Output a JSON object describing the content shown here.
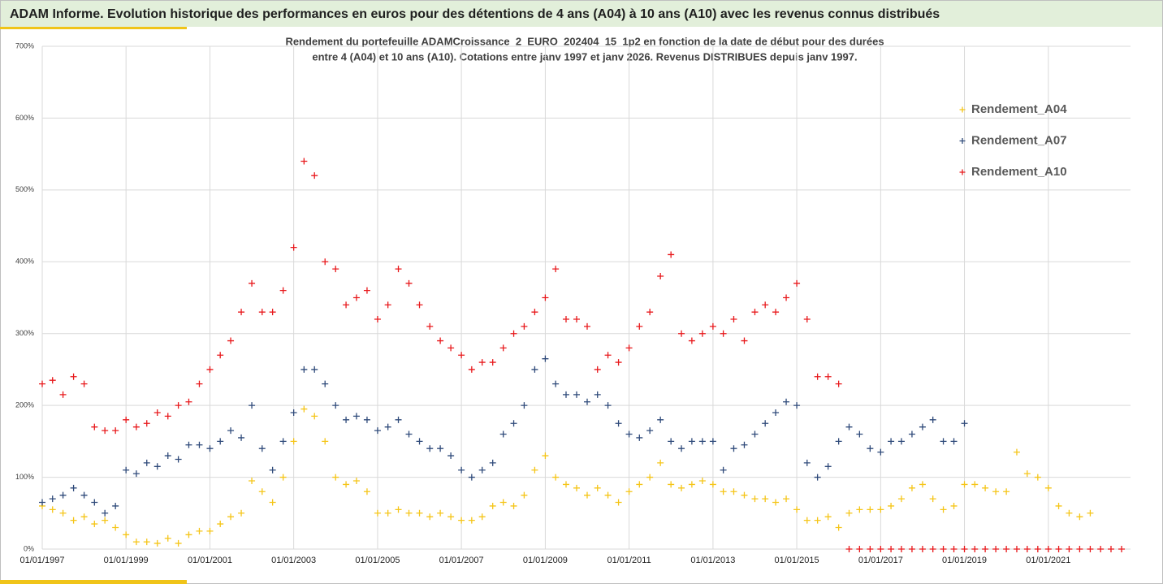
{
  "header": {
    "title": "ADAM Informe. Evolution historique des performances en euros pour des détentions de 4 ans (A04) à 10 ans (A10) avec les revenus connus distribués"
  },
  "chart_data": {
    "type": "scatter",
    "title": "Rendement du portefeuille ADAMCroissance_2_EURO_202404_15_1p2  en fonction de la date de début pour des durées",
    "subtitle": "entre 4 (A04) et 10 ans (A10). Cotations entre janv 1997 et janv 2026. Revenus DISTRIBUES depuis janv 1997.",
    "x": [
      "01/01/1997",
      "01/04/1997",
      "01/07/1997",
      "01/10/1997",
      "01/01/1998",
      "01/04/1998",
      "01/07/1998",
      "01/10/1998",
      "01/01/1999",
      "01/04/1999",
      "01/07/1999",
      "01/10/1999",
      "01/01/2000",
      "01/04/2000",
      "01/07/2000",
      "01/10/2000",
      "01/01/2001",
      "01/04/2001",
      "01/07/2001",
      "01/10/2001",
      "01/01/2002",
      "01/04/2002",
      "01/07/2002",
      "01/10/2002",
      "01/01/2003",
      "01/04/2003",
      "01/07/2003",
      "01/10/2003",
      "01/01/2004",
      "01/04/2004",
      "01/07/2004",
      "01/10/2004",
      "01/01/2005",
      "01/04/2005",
      "01/07/2005",
      "01/10/2005",
      "01/01/2006",
      "01/04/2006",
      "01/07/2006",
      "01/10/2006",
      "01/01/2007",
      "01/04/2007",
      "01/07/2007",
      "01/10/2007",
      "01/01/2008",
      "01/04/2008",
      "01/07/2008",
      "01/10/2008",
      "01/01/2009",
      "01/04/2009",
      "01/07/2009",
      "01/10/2009",
      "01/01/2010",
      "01/04/2010",
      "01/07/2010",
      "01/10/2010",
      "01/01/2011",
      "01/04/2011",
      "01/07/2011",
      "01/10/2011",
      "01/01/2012",
      "01/04/2012",
      "01/07/2012",
      "01/10/2012",
      "01/01/2013",
      "01/04/2013",
      "01/07/2013",
      "01/10/2013",
      "01/01/2014",
      "01/04/2014",
      "01/07/2014",
      "01/10/2014",
      "01/01/2015",
      "01/04/2015",
      "01/07/2015",
      "01/10/2015",
      "01/01/2016",
      "01/04/2016",
      "01/07/2016",
      "01/10/2016",
      "01/01/2017",
      "01/04/2017",
      "01/07/2017",
      "01/10/2017",
      "01/01/2018",
      "01/04/2018",
      "01/07/2018",
      "01/10/2018",
      "01/01/2019",
      "01/04/2019",
      "01/07/2019",
      "01/10/2019",
      "01/01/2020",
      "01/04/2020",
      "01/07/2020",
      "01/10/2020",
      "01/01/2021",
      "01/04/2021",
      "01/07/2021",
      "01/10/2021",
      "01/01/2022",
      "01/04/2022",
      "01/07/2022",
      "01/10/2022"
    ],
    "xlim": [
      "01/01/1997",
      "01/01/2023"
    ],
    "xticks": [
      "01/01/1997",
      "01/01/1999",
      "01/01/2001",
      "01/01/2003",
      "01/01/2005",
      "01/01/2007",
      "01/01/2009",
      "01/01/2011",
      "01/01/2013",
      "01/01/2015",
      "01/01/2017",
      "01/01/2019",
      "01/01/2021"
    ],
    "ylim": [
      0,
      700
    ],
    "yticks": [
      {
        "value": 0,
        "label": "0%"
      },
      {
        "value": 100,
        "label": "100%"
      },
      {
        "value": 200,
        "label": "200%"
      },
      {
        "value": 300,
        "label": "300%"
      },
      {
        "value": 400,
        "label": "400%"
      },
      {
        "value": 500,
        "label": "500%"
      },
      {
        "value": 600,
        "label": "600%"
      },
      {
        "value": 700,
        "label": "700%"
      }
    ],
    "grid": true,
    "legend": "upper right",
    "series": [
      {
        "name": "Rendement_A04",
        "color": "#f5c518",
        "values": [
          60,
          55,
          50,
          40,
          45,
          35,
          40,
          30,
          20,
          10,
          10,
          8,
          15,
          8,
          20,
          25,
          25,
          35,
          45,
          50,
          95,
          80,
          65,
          100,
          150,
          195,
          185,
          150,
          100,
          90,
          95,
          80,
          50,
          50,
          55,
          50,
          50,
          45,
          50,
          45,
          40,
          40,
          45,
          60,
          65,
          60,
          75,
          110,
          130,
          100,
          90,
          85,
          75,
          85,
          75,
          65,
          80,
          90,
          100,
          120,
          90,
          85,
          90,
          95,
          90,
          80,
          80,
          75,
          70,
          70,
          65,
          70,
          55,
          40,
          40,
          45,
          30,
          50,
          55,
          55,
          55,
          60,
          70,
          85,
          90,
          70,
          55,
          60,
          90,
          90,
          85,
          80,
          80,
          135,
          105,
          100,
          85,
          60,
          50,
          45,
          50,
          null,
          null,
          null
        ]
      },
      {
        "name": "Rendement_A07",
        "color": "#2f4a7a",
        "values": [
          65,
          70,
          75,
          85,
          75,
          65,
          50,
          60,
          110,
          105,
          120,
          115,
          130,
          125,
          145,
          145,
          140,
          150,
          165,
          155,
          200,
          140,
          110,
          150,
          190,
          250,
          250,
          230,
          200,
          180,
          185,
          180,
          165,
          170,
          180,
          160,
          150,
          140,
          140,
          130,
          110,
          100,
          110,
          120,
          160,
          175,
          200,
          250,
          265,
          230,
          215,
          215,
          205,
          215,
          200,
          175,
          160,
          155,
          165,
          180,
          150,
          140,
          150,
          150,
          150,
          110,
          140,
          145,
          160,
          175,
          190,
          205,
          200,
          120,
          100,
          115,
          150,
          170,
          160,
          140,
          135,
          150,
          150,
          160,
          170,
          180,
          150,
          150,
          175,
          null,
          null,
          null,
          null,
          null,
          null,
          null,
          null,
          null,
          null,
          null,
          null,
          null,
          null,
          null
        ]
      },
      {
        "name": "Rendement_A10",
        "color": "#e8191c",
        "values": [
          230,
          235,
          215,
          240,
          230,
          170,
          165,
          165,
          180,
          170,
          175,
          190,
          185,
          200,
          205,
          230,
          250,
          270,
          290,
          330,
          370,
          330,
          330,
          360,
          420,
          540,
          520,
          400,
          390,
          340,
          350,
          360,
          320,
          340,
          390,
          370,
          340,
          310,
          290,
          280,
          270,
          250,
          260,
          260,
          280,
          300,
          310,
          330,
          350,
          390,
          320,
          320,
          310,
          250,
          270,
          260,
          280,
          310,
          330,
          380,
          410,
          300,
          290,
          300,
          310,
          300,
          320,
          290,
          330,
          340,
          330,
          350,
          370,
          320,
          240,
          240,
          230,
          0,
          0,
          0,
          0,
          0,
          0,
          0,
          0,
          0,
          0,
          0,
          0,
          0,
          0,
          0,
          0,
          0,
          0,
          0,
          0,
          0,
          0,
          0,
          0,
          0,
          0,
          0
        ]
      }
    ]
  }
}
